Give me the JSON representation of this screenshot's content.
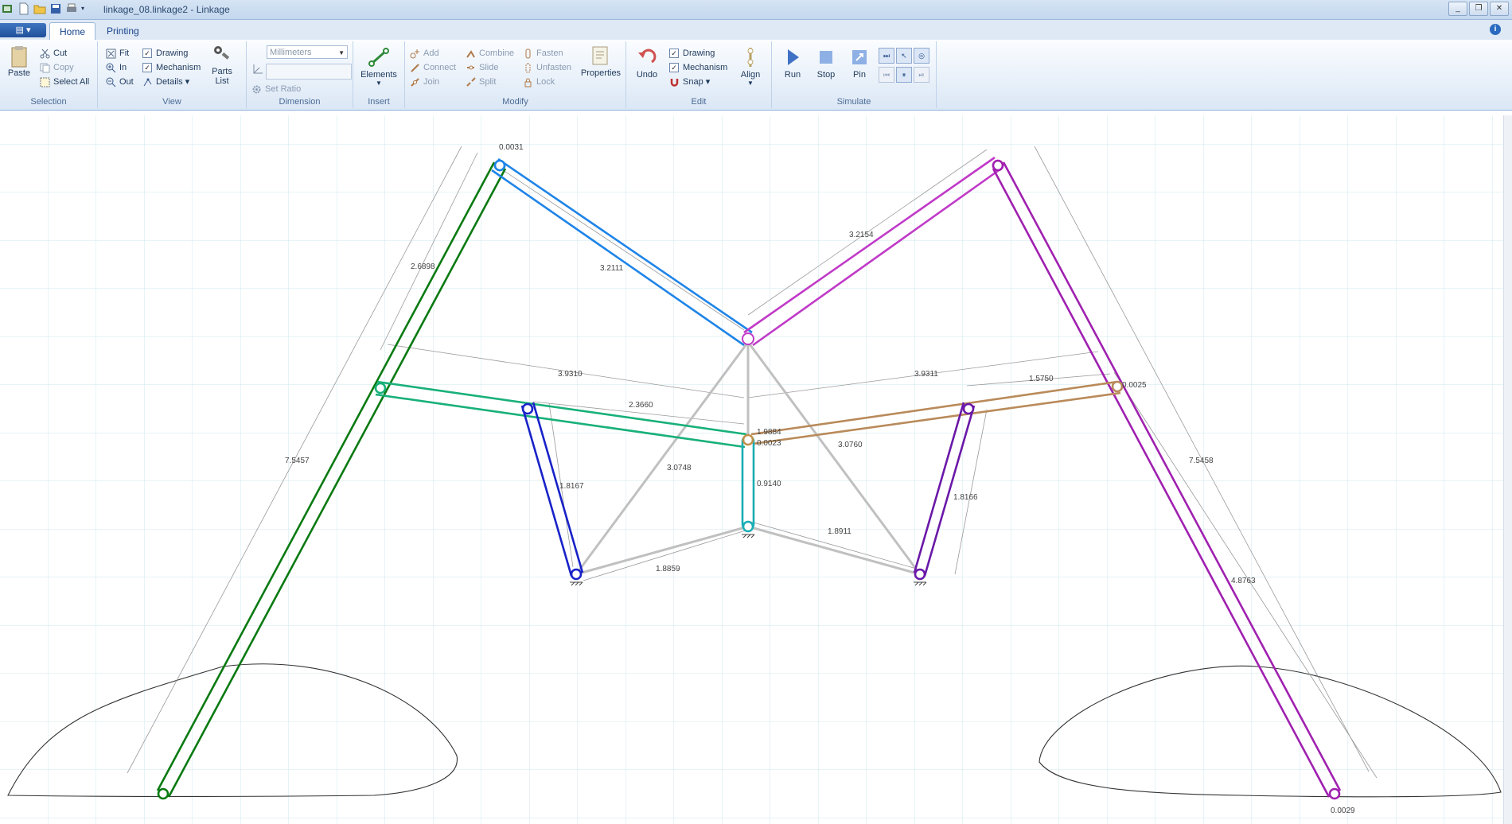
{
  "window": {
    "title": "linkage_08.linkage2 - Linkage"
  },
  "tabs": [
    {
      "label": "Home"
    },
    {
      "label": "Printing"
    }
  ],
  "ribbon": {
    "selection": {
      "paste": "Paste",
      "cut": "Cut",
      "copy": "Copy",
      "select_all": "Select All",
      "label": "Selection"
    },
    "view": {
      "fit": "Fit",
      "in": "In",
      "out": "Out",
      "drawing": "Drawing",
      "mechanism": "Mechanism",
      "details": "Details",
      "parts_list_line1": "Parts",
      "parts_list_line2": "List",
      "label": "View"
    },
    "dimension": {
      "units": "Millimeters",
      "set_ratio": "Set Ratio",
      "label": "Dimension"
    },
    "insert": {
      "elements": "Elements",
      "label": "Insert"
    },
    "modify": {
      "add": "Add",
      "connect": "Connect",
      "join": "Join",
      "combine": "Combine",
      "slide": "Slide",
      "split": "Split",
      "fasten": "Fasten",
      "unfasten": "Unfasten",
      "lock": "Lock",
      "properties": "Properties",
      "label": "Modify"
    },
    "edit": {
      "undo": "Undo",
      "drawing": "Drawing",
      "mechanism": "Mechanism",
      "snap": "Snap",
      "align": "Align",
      "label": "Edit"
    },
    "simulate": {
      "run": "Run",
      "stop": "Stop",
      "pin": "Pin",
      "label": "Simulate"
    }
  },
  "dimensions": {
    "d_top": "0.0031",
    "d_left_upper": "2.6898",
    "d_blue_top": "3.2111",
    "d_magenta_top": "3.2154",
    "d_left_long": "7.5457",
    "d_right_long": "7.5458",
    "d_left_horiz": "3.9310",
    "d_right_horiz": "3.9311",
    "d_mid": "2.3660",
    "d_orange": "1.5750",
    "d_right_small": "0.0025",
    "d_center_a": "1.9884",
    "d_center_b": "0.0023",
    "d_left_link": "1.8167",
    "d_right_link": "1.8166",
    "d_gray_left": "3.0748",
    "d_gray_right": "3.0760",
    "d_center_vert": "0.9140",
    "d_bottom_left": "1.8859",
    "d_bottom_right": "1.8911",
    "d_right_lower": "4.8763",
    "d_foot": "0.0029"
  }
}
